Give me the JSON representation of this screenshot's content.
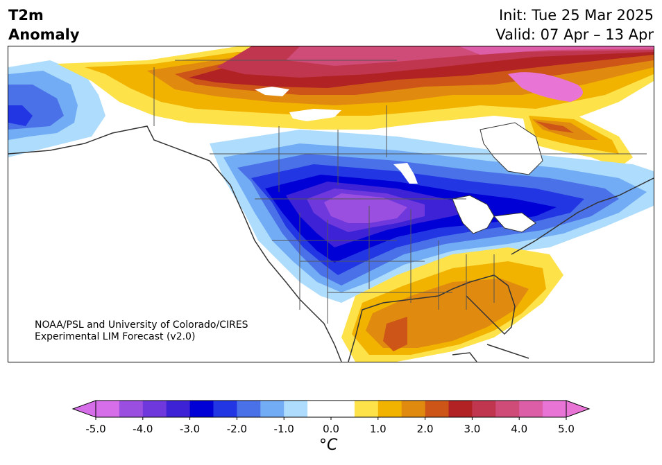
{
  "title": {
    "left_line1": "T2m",
    "left_line2": "Anomaly",
    "right_line1": "Init: Tue 25 Mar 2025",
    "right_line2": "Valid: 07 Apr – 13 Apr"
  },
  "credit": {
    "line1": "NOAA/PSL and University of Colorado/CIRES",
    "line2": "Experimental LIM Forecast (v2.0)"
  },
  "colorbar": {
    "unit_label": "°C",
    "ticks": [
      "-5.0",
      "-4.0",
      "-3.0",
      "-2.0",
      "-1.0",
      "0.0",
      "1.0",
      "2.0",
      "3.0",
      "4.0",
      "5.0"
    ],
    "colors": [
      "#d56ee8",
      "#9b4fe0",
      "#6e38dc",
      "#3d22d6",
      "#0000d6",
      "#2237e3",
      "#4b71e8",
      "#72acf4",
      "#aedcfd",
      "#ffffff",
      "#ffffff",
      "#fde24a",
      "#f2b200",
      "#e08a10",
      "#cd5518",
      "#b02223",
      "#c0364f",
      "#cf4b78",
      "#db5ea6",
      "#e874d6"
    ],
    "under_color": "#d56ee8",
    "over_color": "#e874d6",
    "min": -5.0,
    "max": 5.0
  },
  "map": {
    "region": "North America",
    "land_color": "#ffffff",
    "border_color": "#333333"
  }
}
